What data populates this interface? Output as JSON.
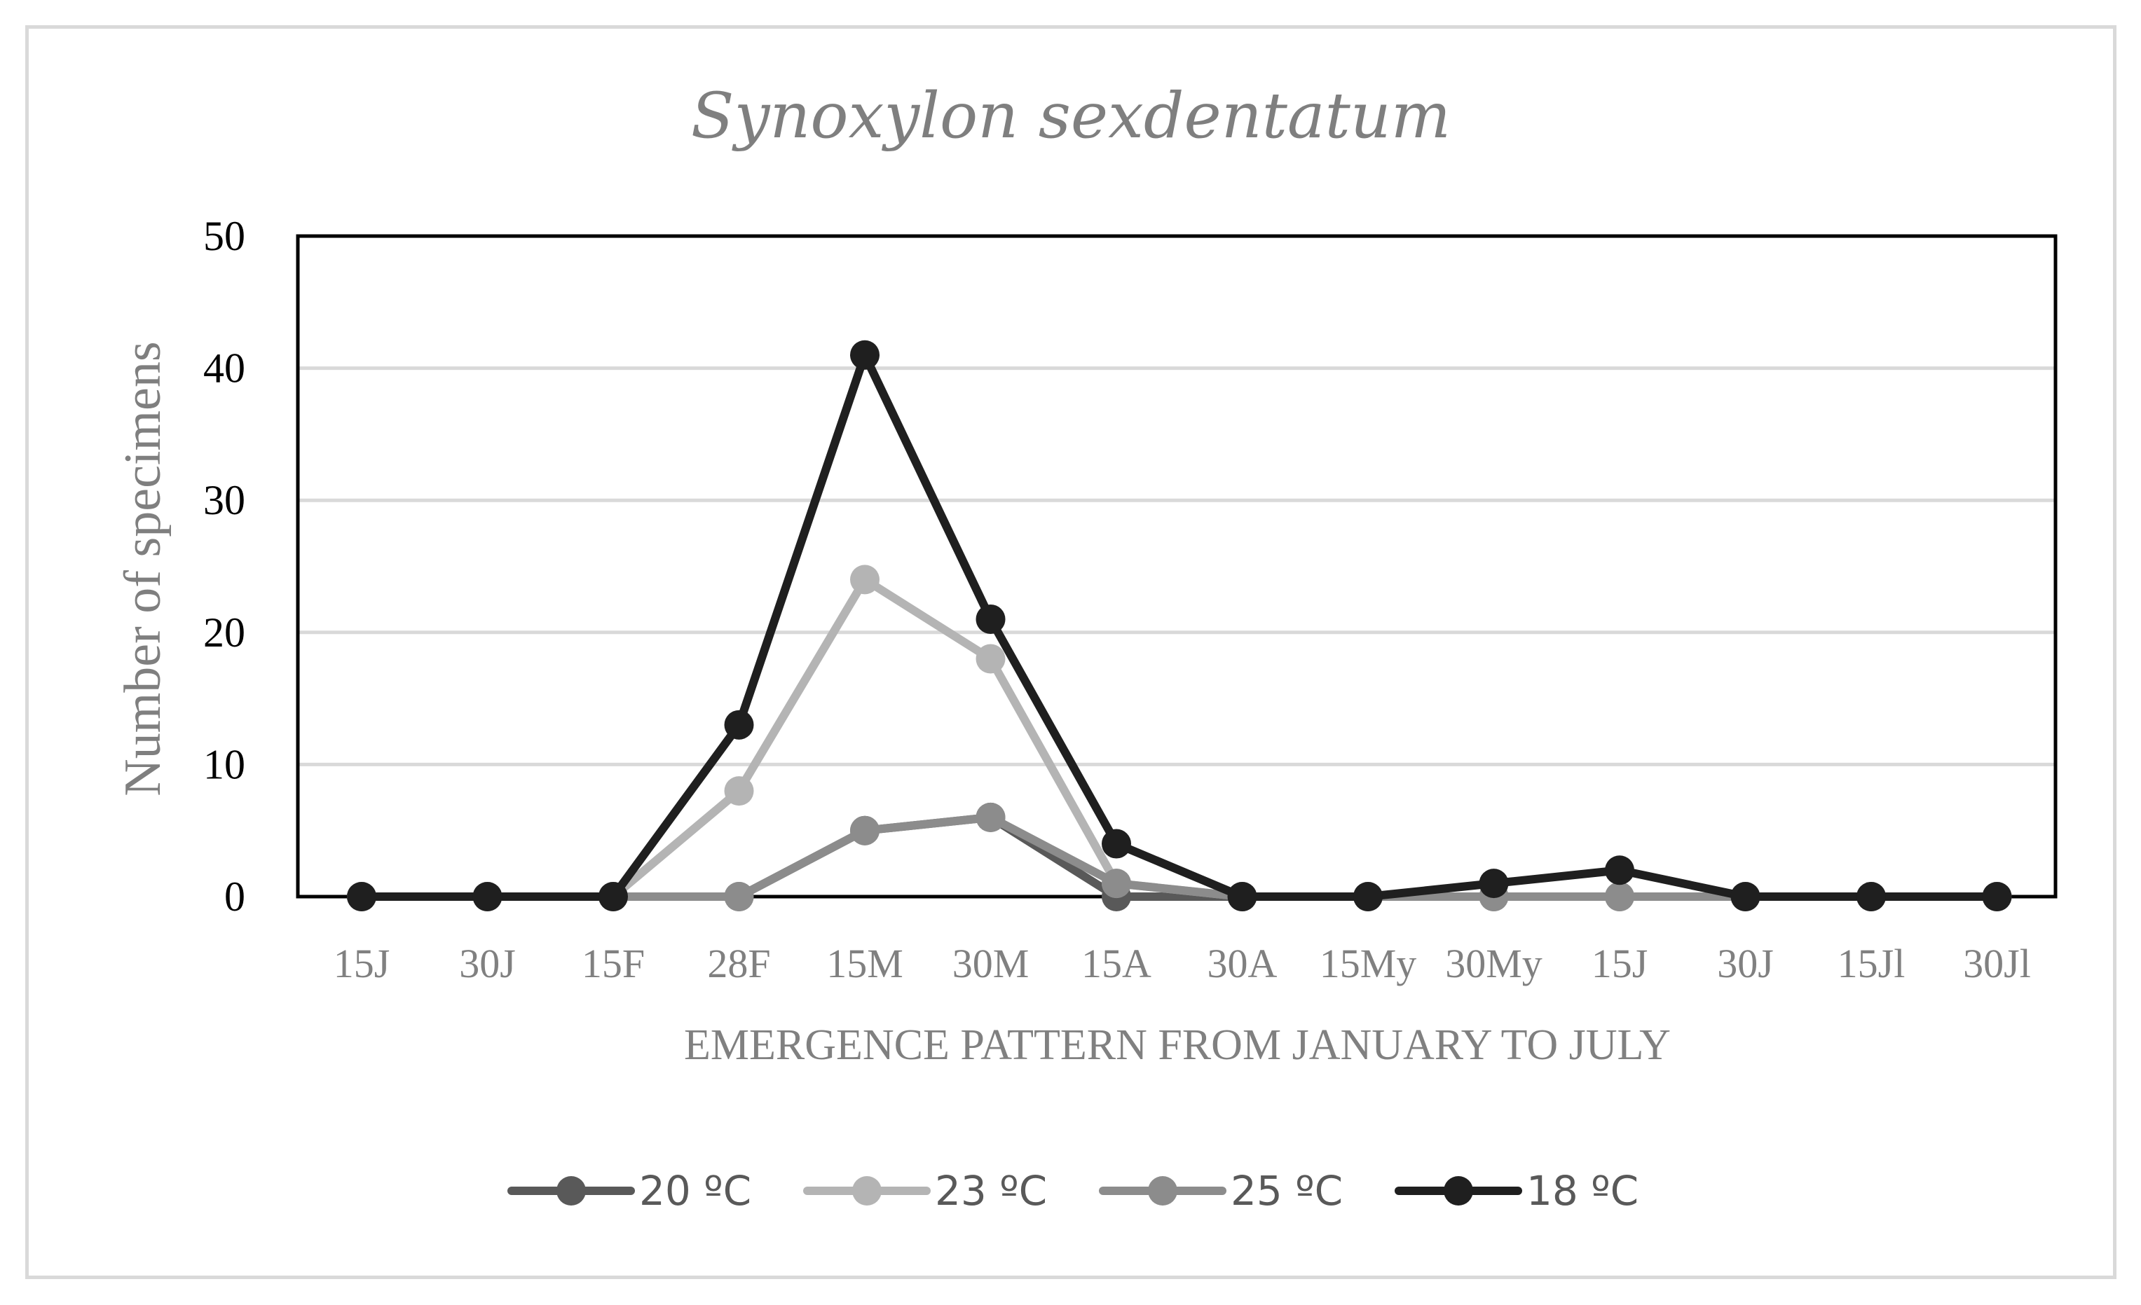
{
  "chart_data": {
    "type": "line",
    "title": "Synoxylon sexdentatum",
    "xlabel": "EMERGENCE PATTERN FROM JANUARY TO JULY",
    "ylabel": "Number of specimens",
    "ylim": [
      0,
      50
    ],
    "yticks": [
      0,
      10,
      20,
      30,
      40,
      50
    ],
    "grid": true,
    "legend_position": "bottom",
    "categories": [
      "15J",
      "30J",
      "15F",
      "28F",
      "15M",
      "30M",
      "15A",
      "30A",
      "15My",
      "30My",
      "15J",
      "30J",
      "15Jl",
      "30Jl"
    ],
    "series": [
      {
        "name": "20 ºC",
        "color": "#595959",
        "values": [
          0,
          0,
          0,
          0,
          5,
          6,
          0,
          0,
          0,
          0,
          0,
          0,
          0,
          0
        ]
      },
      {
        "name": "23 ºC",
        "color": "#b4b4b4",
        "values": [
          0,
          0,
          0,
          8,
          24,
          18,
          1,
          0,
          0,
          0,
          0,
          0,
          0,
          0
        ]
      },
      {
        "name": "25 ºC",
        "color": "#8c8c8c",
        "values": [
          0,
          0,
          0,
          0,
          5,
          6,
          1,
          0,
          0,
          0,
          0,
          0,
          0,
          0
        ]
      },
      {
        "name": "18 ºC",
        "color": "#1f1f1f",
        "values": [
          0,
          0,
          0,
          13,
          41,
          21,
          4,
          0,
          0,
          1,
          2,
          0,
          0,
          0
        ]
      }
    ]
  }
}
